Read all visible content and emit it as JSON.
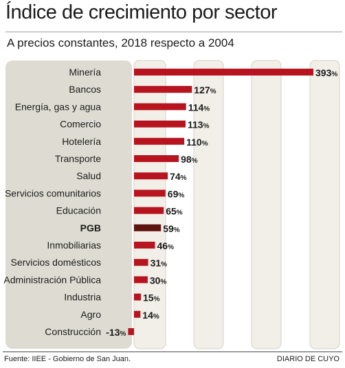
{
  "colors": {
    "bar": "#b7141f",
    "highlight_bar": "#5e1410",
    "panel": "#dedcd2",
    "column_band": "#f1efe7",
    "column_border": "#d4d1c6"
  },
  "footer": {
    "source": "Fuente: IIEE - Gobierno de San Juan.",
    "brand": "DIARIO DE CUYO"
  },
  "chart_data": {
    "type": "bar",
    "orientation": "horizontal",
    "title": "Índice de crecimiento por sector",
    "subtitle": "A precios constantes, 2018 respecto a 2004",
    "value_suffix": "%",
    "xlim": [
      -13,
      393
    ],
    "highlight": "PGB",
    "categories": [
      "Minería",
      "Bancos",
      "Energía, gas y agua",
      "Comercio",
      "Hotelería",
      "Transporte",
      "Salud",
      "Servicios comunitarios",
      "Educación",
      "PGB",
      "Inmobiliarias",
      "Servicios domésticos",
      "Administración Pública",
      "Industria",
      "Agro",
      "Construcción"
    ],
    "values": [
      393,
      127,
      114,
      113,
      110,
      98,
      74,
      69,
      65,
      59,
      46,
      31,
      30,
      15,
      14,
      -13
    ]
  }
}
